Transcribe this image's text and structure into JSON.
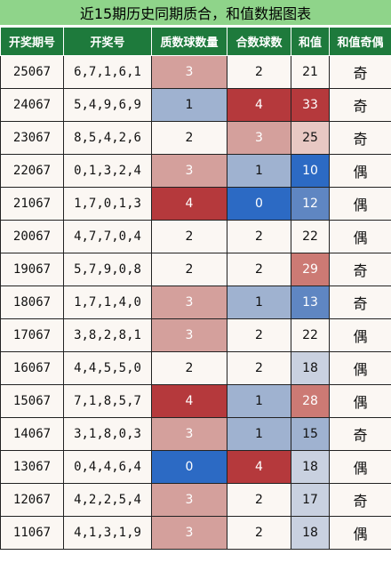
{
  "title": "近15期历史同期质合，和值数据图表",
  "headers": [
    "开奖期号",
    "开奖号",
    "质数球数量",
    "合数球数",
    "和值",
    "和值奇偶"
  ],
  "colors": {
    "base": "#fbf7f3",
    "light_red": "#d4a09c",
    "dark_red": "#b5393c",
    "light_blue": "#9fb2d0",
    "dark_blue": "#2c6ac4",
    "pale_red": "#e8c8c3",
    "pale_blue": "#c9d1e0",
    "mid_blue": "#5f86c2",
    "mid_red": "#cc7a74"
  },
  "rows": [
    {
      "period": "25067",
      "numbers": "6,7,1,6,1",
      "prime": "3",
      "composite": "2",
      "sum": "21",
      "parity": "奇",
      "prime_bg": "light_red",
      "comp_bg": "base",
      "sum_bg": "base"
    },
    {
      "period": "24067",
      "numbers": "5,4,9,6,9",
      "prime": "1",
      "composite": "4",
      "sum": "33",
      "parity": "奇",
      "prime_bg": "light_blue",
      "comp_bg": "dark_red",
      "sum_bg": "dark_red"
    },
    {
      "period": "23067",
      "numbers": "8,5,4,2,6",
      "prime": "2",
      "composite": "3",
      "sum": "25",
      "parity": "奇",
      "prime_bg": "base",
      "comp_bg": "light_red",
      "sum_bg": "pale_red"
    },
    {
      "period": "22067",
      "numbers": "0,1,3,2,4",
      "prime": "3",
      "composite": "1",
      "sum": "10",
      "parity": "偶",
      "prime_bg": "light_red",
      "comp_bg": "light_blue",
      "sum_bg": "dark_blue"
    },
    {
      "period": "21067",
      "numbers": "1,7,0,1,3",
      "prime": "4",
      "composite": "0",
      "sum": "12",
      "parity": "偶",
      "prime_bg": "dark_red",
      "comp_bg": "dark_blue",
      "sum_bg": "mid_blue"
    },
    {
      "period": "20067",
      "numbers": "4,7,7,0,4",
      "prime": "2",
      "composite": "2",
      "sum": "22",
      "parity": "偶",
      "prime_bg": "base",
      "comp_bg": "base",
      "sum_bg": "base"
    },
    {
      "period": "19067",
      "numbers": "5,7,9,0,8",
      "prime": "2",
      "composite": "2",
      "sum": "29",
      "parity": "奇",
      "prime_bg": "base",
      "comp_bg": "base",
      "sum_bg": "mid_red"
    },
    {
      "period": "18067",
      "numbers": "1,7,1,4,0",
      "prime": "3",
      "composite": "1",
      "sum": "13",
      "parity": "奇",
      "prime_bg": "light_red",
      "comp_bg": "light_blue",
      "sum_bg": "mid_blue"
    },
    {
      "period": "17067",
      "numbers": "3,8,2,8,1",
      "prime": "3",
      "composite": "2",
      "sum": "22",
      "parity": "偶",
      "prime_bg": "light_red",
      "comp_bg": "base",
      "sum_bg": "base"
    },
    {
      "period": "16067",
      "numbers": "4,4,5,5,0",
      "prime": "2",
      "composite": "2",
      "sum": "18",
      "parity": "偶",
      "prime_bg": "base",
      "comp_bg": "base",
      "sum_bg": "pale_blue"
    },
    {
      "period": "15067",
      "numbers": "7,1,8,5,7",
      "prime": "4",
      "composite": "1",
      "sum": "28",
      "parity": "偶",
      "prime_bg": "dark_red",
      "comp_bg": "light_blue",
      "sum_bg": "mid_red"
    },
    {
      "period": "14067",
      "numbers": "3,1,8,0,3",
      "prime": "3",
      "composite": "1",
      "sum": "15",
      "parity": "奇",
      "prime_bg": "light_red",
      "comp_bg": "light_blue",
      "sum_bg": "light_blue"
    },
    {
      "period": "13067",
      "numbers": "0,4,4,6,4",
      "prime": "0",
      "composite": "4",
      "sum": "18",
      "parity": "偶",
      "prime_bg": "dark_blue",
      "comp_bg": "dark_red",
      "sum_bg": "pale_blue"
    },
    {
      "period": "12067",
      "numbers": "4,2,2,5,4",
      "prime": "3",
      "composite": "2",
      "sum": "17",
      "parity": "奇",
      "prime_bg": "light_red",
      "comp_bg": "base",
      "sum_bg": "pale_blue"
    },
    {
      "period": "11067",
      "numbers": "4,1,3,1,9",
      "prime": "3",
      "composite": "2",
      "sum": "18",
      "parity": "偶",
      "prime_bg": "light_red",
      "comp_bg": "base",
      "sum_bg": "pale_blue"
    }
  ]
}
